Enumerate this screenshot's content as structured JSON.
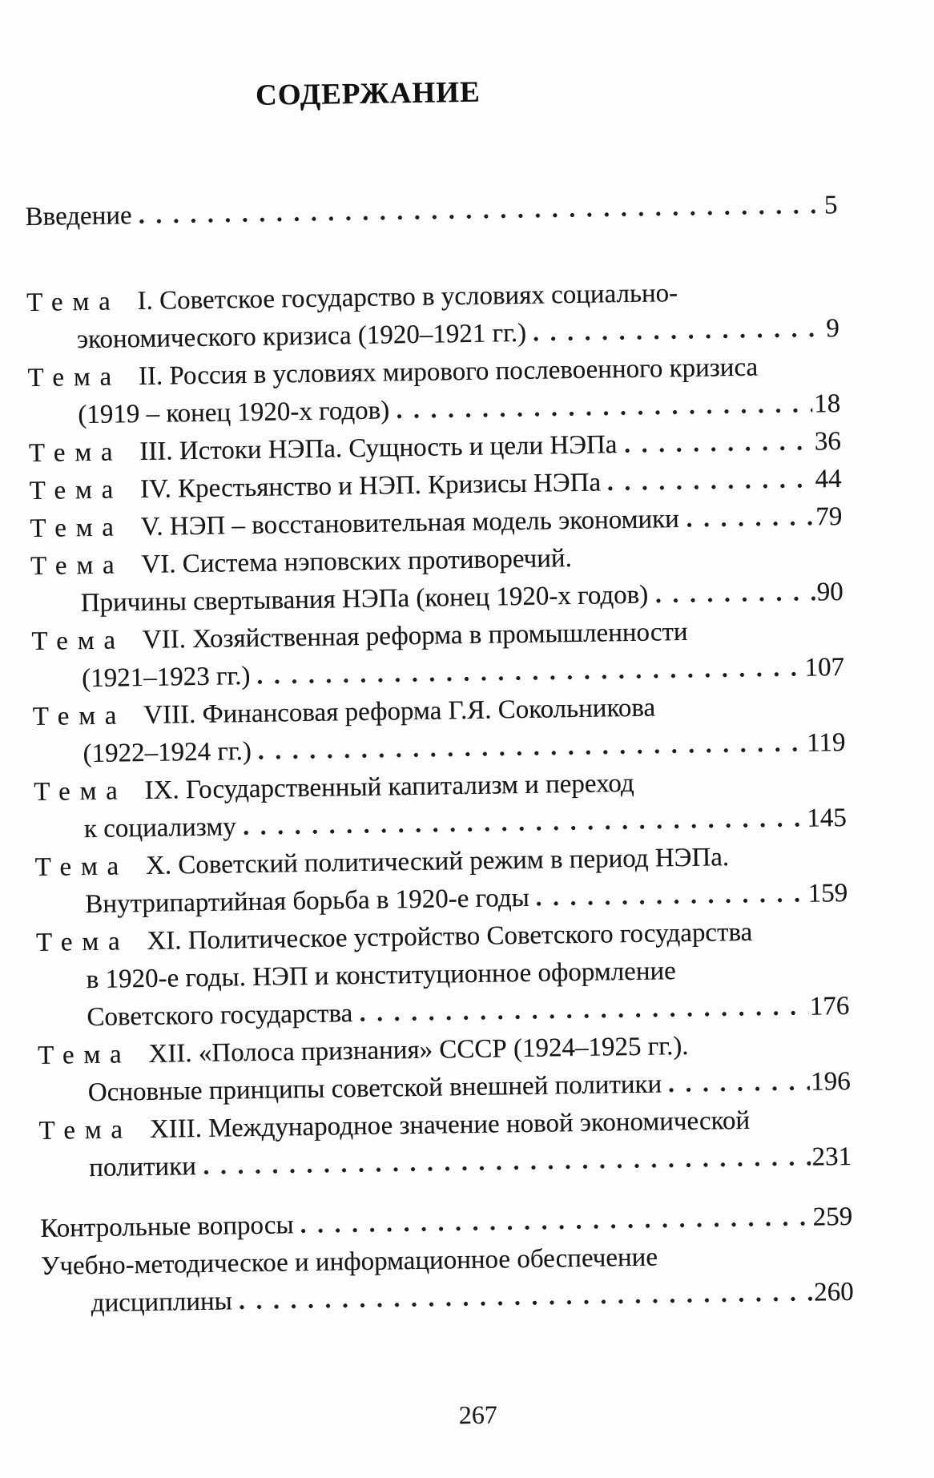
{
  "document": {
    "title": "СОДЕРЖАНИЕ",
    "footer_page_number": "267"
  },
  "toc": {
    "intro": {
      "text": "Введение",
      "page": "5"
    },
    "entries": [
      {
        "tema": "Тема",
        "first": "I. Советское государство в условиях социально-",
        "cont": [
          "экономического кризиса (1920–1921 гг.)"
        ],
        "page": "9"
      },
      {
        "tema": "Тема",
        "first": "II. Россия в условиях мирового послевоенного кризиса",
        "cont": [
          "(1919 – конец 1920-х годов)"
        ],
        "page": "18"
      },
      {
        "tema": "Тема",
        "first": "III. Истоки НЭПа. Сущность и цели НЭПа",
        "cont": [],
        "page": "36"
      },
      {
        "tema": "Тема",
        "first": "IV. Крестьянство и НЭП. Кризисы НЭПа",
        "cont": [],
        "page": "44"
      },
      {
        "tema": "Тема",
        "first": "V. НЭП – восстановительная модель экономики",
        "cont": [],
        "page": "79"
      },
      {
        "tema": "Тема",
        "first": "VI. Система нэповских противоречий.",
        "cont": [
          "Причины свертывания НЭПа  (конец 1920-х годов)"
        ],
        "page": "90"
      },
      {
        "tema": "Тема",
        "first": "VII. Хозяйственная реформа в промышленности",
        "cont": [
          "(1921–1923 гг.)"
        ],
        "page": "107"
      },
      {
        "tema": "Тема",
        "first": "VIII. Финансовая реформа Г.Я. Сокольникова",
        "cont": [
          "(1922–1924 гг.)"
        ],
        "page": "119"
      },
      {
        "tema": "Тема",
        "first": "IX. Государственный капитализм и переход",
        "cont": [
          "к социализму"
        ],
        "page": "145"
      },
      {
        "tema": "Тема",
        "first": "X. Советский политический режим в период НЭПа.",
        "cont": [
          "Внутрипартийная борьба в 1920-е годы"
        ],
        "page": "159"
      },
      {
        "tema": "Тема",
        "first": "XI. Политическое устройство Советского государства",
        "cont": [
          "в 1920-е годы. НЭП и конституционное оформление",
          "Советского государства"
        ],
        "page": "176"
      },
      {
        "tema": "Тема",
        "first": "XII. «Полоса признания» СССР (1924–1925 гг.).",
        "cont": [
          "Основные принципы советской внешней политики"
        ],
        "page": "196"
      },
      {
        "tema": "Тема",
        "first": "XIII. Международное значение новой экономической",
        "cont": [
          "политики"
        ],
        "page": "231"
      }
    ],
    "extras": [
      {
        "first": "Контрольные вопросы",
        "cont": [],
        "page": "259"
      },
      {
        "first": "Учебно-методическое и информационное обеспечение",
        "cont": [
          "дисциплины"
        ],
        "page": "260"
      }
    ]
  }
}
